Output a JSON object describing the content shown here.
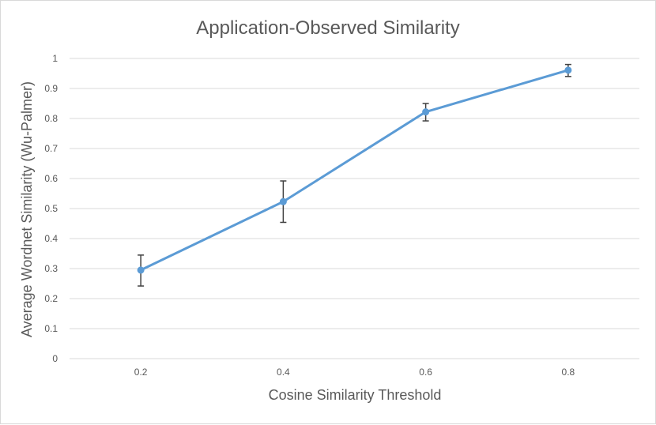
{
  "chart_data": {
    "type": "line",
    "title": "Application-Observed Similarity",
    "xlabel": "Cosine Similarity Threshold",
    "ylabel": "Average Wordnet Similarity (Wu-Palmer)",
    "categories": [
      "0.2",
      "0.4",
      "0.6",
      "0.8"
    ],
    "yticks": [
      "0",
      "0.1",
      "0.2",
      "0.3",
      "0.4",
      "0.5",
      "0.6",
      "0.7",
      "0.8",
      "0.9",
      "1"
    ],
    "ylim": [
      0,
      1
    ],
    "grid": true,
    "legend": "none",
    "series": [
      {
        "values": [
          0.295,
          0.523,
          0.822,
          0.961
        ],
        "error_upper": [
          0.345,
          0.592,
          0.85,
          0.98
        ],
        "error_lower": [
          0.242,
          0.454,
          0.792,
          0.94
        ],
        "color": "#5b9bd5"
      }
    ]
  }
}
